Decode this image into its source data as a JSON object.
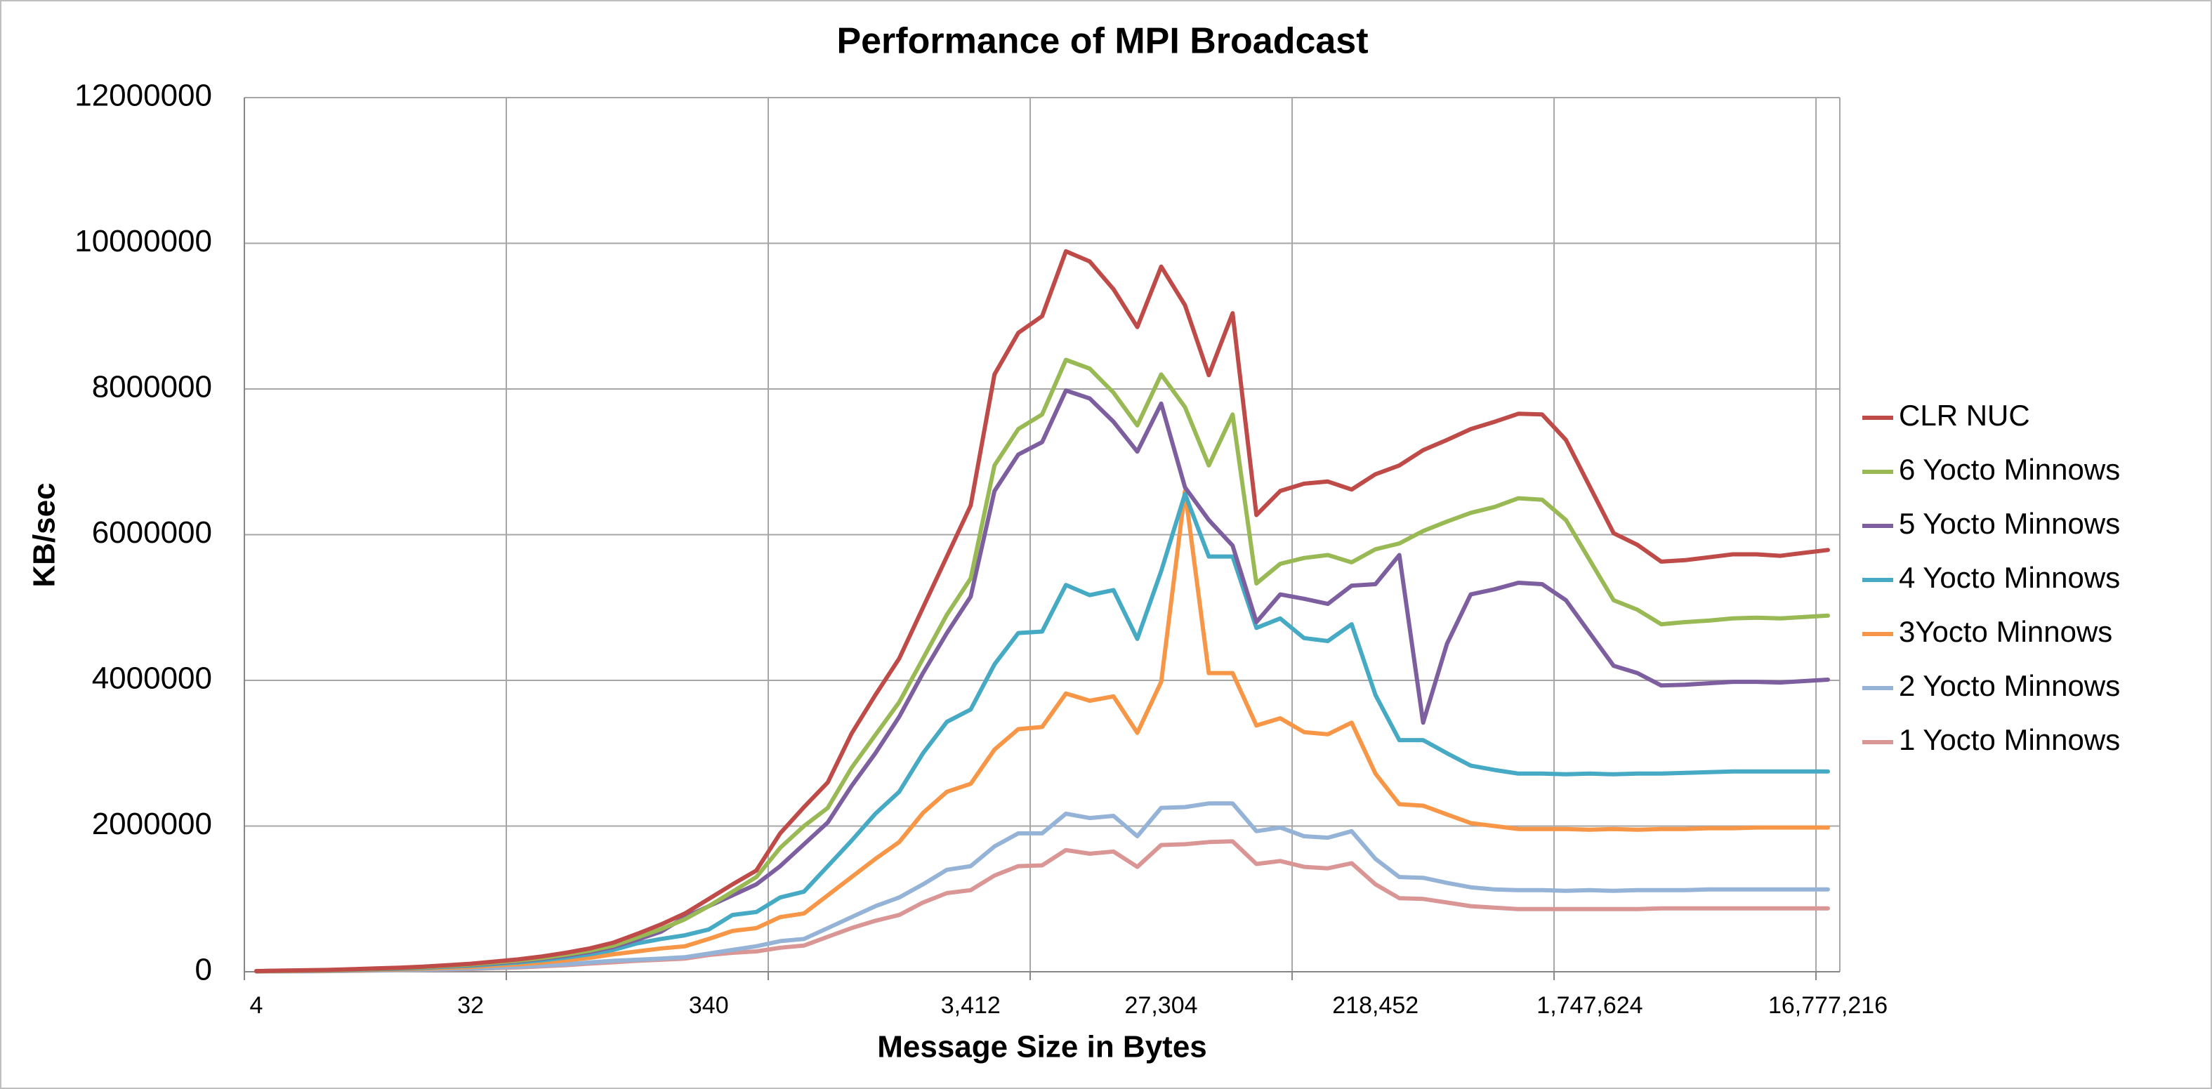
{
  "chart_data": {
    "type": "line",
    "title": "Performance of MPI Broadcast",
    "x_label": "Message Size in Bytes",
    "y_label": "KB/sec",
    "categories": [
      "4",
      null,
      null,
      null,
      null,
      null,
      null,
      null,
      null,
      "32",
      null,
      null,
      null,
      null,
      null,
      null,
      null,
      null,
      null,
      "340",
      null,
      null,
      null,
      null,
      null,
      null,
      null,
      null,
      null,
      null,
      "3,412",
      null,
      null,
      null,
      null,
      null,
      null,
      null,
      "27,304",
      null,
      null,
      null,
      null,
      null,
      null,
      null,
      null,
      "218,452",
      null,
      null,
      null,
      null,
      null,
      null,
      null,
      null,
      "1,747,624",
      null,
      null,
      null,
      null,
      null,
      null,
      null,
      null,
      null,
      "16,777,216"
    ],
    "ylim": [
      0,
      12000000
    ],
    "yticks": [
      0,
      2000000,
      4000000,
      6000000,
      8000000,
      10000000,
      12000000
    ],
    "grid": true,
    "legend": "right",
    "series": [
      {
        "name": "CLR NUC",
        "color": "#be4b48",
        "values": [
          10000,
          15000,
          20000,
          25000,
          35000,
          45000,
          55000,
          70000,
          90000,
          110000,
          140000,
          170000,
          210000,
          260000,
          320000,
          400000,
          520000,
          650000,
          800000,
          1000000,
          1200000,
          1390000,
          1900000,
          2260000,
          2600000,
          3270000,
          3800000,
          4300000,
          5000000,
          5700000,
          6400000,
          8200000,
          8770000,
          9000000,
          9890000,
          9750000,
          9370000,
          8850000,
          9680000,
          9150000,
          8190000,
          9040000,
          6270000,
          6600000,
          6700000,
          6730000,
          6620000,
          6830000,
          6950000,
          7160000,
          7300000,
          7450000,
          7550000,
          7660000,
          7650000,
          7300000,
          6660000,
          6020000,
          5860000,
          5630000,
          5650000,
          5690000,
          5730000,
          5730000,
          5710000,
          5750000,
          5790000
        ]
      },
      {
        "name": "6 Yocto Minnows",
        "color": "#98b954",
        "values": [
          9000,
          13000,
          18000,
          22000,
          31000,
          40000,
          50000,
          63000,
          81000,
          99000,
          126000,
          153000,
          189000,
          234000,
          288000,
          360000,
          470000,
          585000,
          720000,
          900000,
          1100000,
          1300000,
          1700000,
          2000000,
          2250000,
          2800000,
          3250000,
          3700000,
          4300000,
          4900000,
          5400000,
          6950000,
          7450000,
          7650000,
          8400000,
          8280000,
          7950000,
          7500000,
          8200000,
          7750000,
          6950000,
          7650000,
          5330000,
          5600000,
          5680000,
          5720000,
          5620000,
          5800000,
          5880000,
          6050000,
          6180000,
          6300000,
          6380000,
          6500000,
          6480000,
          6200000,
          5650000,
          5100000,
          4970000,
          4770000,
          4800000,
          4820000,
          4850000,
          4860000,
          4850000,
          4870000,
          4890000
        ]
      },
      {
        "name": "5 Yocto Minnows",
        "color": "#7d5fa0",
        "values": [
          8500,
          12500,
          17000,
          21000,
          30000,
          38000,
          47000,
          60000,
          77000,
          94000,
          119000,
          145000,
          179000,
          221000,
          272000,
          340000,
          440000,
          550000,
          750000,
          900000,
          1050000,
          1200000,
          1450000,
          1750000,
          2050000,
          2550000,
          3000000,
          3500000,
          4100000,
          4650000,
          5150000,
          6600000,
          7100000,
          7270000,
          7980000,
          7870000,
          7550000,
          7140000,
          7800000,
          6650000,
          6200000,
          5850000,
          4800000,
          5180000,
          5120000,
          5050000,
          5300000,
          5320000,
          5720000,
          3420000,
          4500000,
          5180000,
          5250000,
          5340000,
          5320000,
          5100000,
          4650000,
          4200000,
          4100000,
          3930000,
          3940000,
          3960000,
          3980000,
          3980000,
          3970000,
          3990000,
          4010000
        ]
      },
      {
        "name": "4 Yocto Minnows",
        "color": "#46aac5",
        "values": [
          7500,
          11000,
          15000,
          19000,
          26000,
          34000,
          41000,
          53000,
          68000,
          83000,
          105000,
          128000,
          158000,
          195000,
          240000,
          300000,
          390000,
          450000,
          500000,
          580000,
          780000,
          820000,
          1020000,
          1100000,
          1450000,
          1800000,
          2170000,
          2470000,
          3000000,
          3430000,
          3600000,
          4220000,
          4650000,
          4670000,
          5310000,
          5170000,
          5240000,
          4570000,
          5500000,
          6560000,
          5700000,
          5700000,
          4720000,
          4850000,
          4580000,
          4540000,
          4770000,
          3800000,
          3180000,
          3180000,
          3000000,
          2830000,
          2770000,
          2720000,
          2720000,
          2710000,
          2720000,
          2710000,
          2720000,
          2720000,
          2730000,
          2740000,
          2750000,
          2750000,
          2750000,
          2750000,
          2750000
        ]
      },
      {
        "name": "3Yocto Minnows",
        "color": "#f79646",
        "values": [
          6000,
          9000,
          12000,
          15000,
          21000,
          27000,
          33000,
          42000,
          54000,
          66000,
          84000,
          102000,
          126000,
          156000,
          192000,
          240000,
          280000,
          320000,
          350000,
          450000,
          560000,
          600000,
          750000,
          800000,
          1050000,
          1300000,
          1550000,
          1780000,
          2180000,
          2470000,
          2580000,
          3050000,
          3330000,
          3360000,
          3820000,
          3720000,
          3780000,
          3280000,
          3980000,
          6600000,
          4100000,
          4100000,
          3380000,
          3480000,
          3290000,
          3260000,
          3420000,
          2720000,
          2300000,
          2280000,
          2160000,
          2040000,
          2000000,
          1960000,
          1960000,
          1960000,
          1950000,
          1960000,
          1950000,
          1960000,
          1960000,
          1970000,
          1970000,
          1980000,
          1980000,
          1980000,
          1980000
        ]
      },
      {
        "name": "2 Yocto Minnows",
        "color": "#95b3d7",
        "values": [
          4000,
          6000,
          8000,
          10000,
          14000,
          18000,
          22000,
          28000,
          36000,
          44000,
          56000,
          68000,
          84000,
          104000,
          128000,
          150000,
          165000,
          180000,
          200000,
          250000,
          300000,
          350000,
          420000,
          450000,
          600000,
          750000,
          900000,
          1020000,
          1200000,
          1400000,
          1450000,
          1720000,
          1900000,
          1900000,
          2170000,
          2110000,
          2140000,
          1860000,
          2250000,
          2260000,
          2310000,
          2310000,
          1930000,
          1980000,
          1860000,
          1840000,
          1930000,
          1550000,
          1300000,
          1290000,
          1220000,
          1160000,
          1130000,
          1120000,
          1120000,
          1110000,
          1120000,
          1110000,
          1120000,
          1120000,
          1120000,
          1130000,
          1130000,
          1130000,
          1130000,
          1130000,
          1130000
        ]
      },
      {
        "name": "1 Yocto Minnows",
        "color": "#d99694",
        "values": [
          3500,
          5000,
          7000,
          9000,
          12000,
          16000,
          19000,
          25000,
          32000,
          38000,
          49000,
          60000,
          74000,
          91000,
          112000,
          130000,
          150000,
          165000,
          180000,
          230000,
          260000,
          280000,
          330000,
          360000,
          480000,
          600000,
          700000,
          780000,
          950000,
          1080000,
          1120000,
          1320000,
          1450000,
          1460000,
          1670000,
          1620000,
          1650000,
          1440000,
          1740000,
          1750000,
          1780000,
          1790000,
          1480000,
          1520000,
          1440000,
          1420000,
          1490000,
          1200000,
          1010000,
          1000000,
          950000,
          900000,
          880000,
          860000,
          860000,
          860000,
          860000,
          860000,
          860000,
          870000,
          870000,
          870000,
          870000,
          870000,
          870000,
          870000,
          870000
        ]
      }
    ]
  }
}
